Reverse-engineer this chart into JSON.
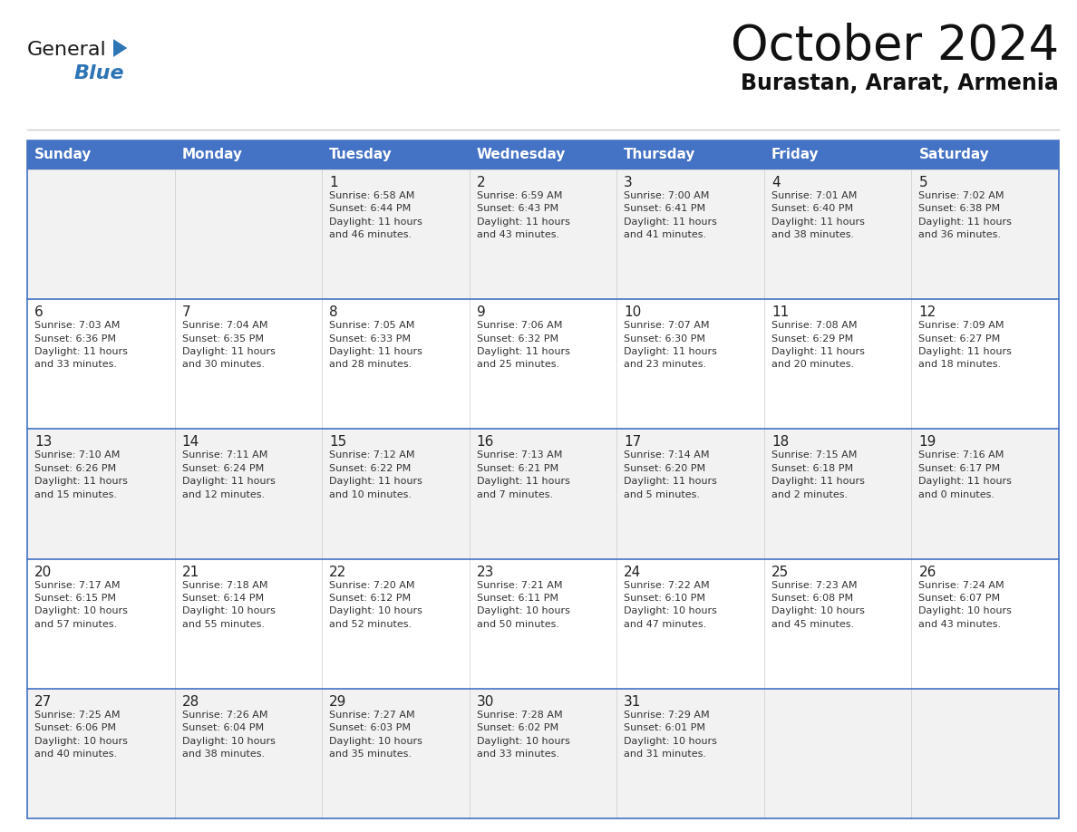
{
  "title": "October 2024",
  "subtitle": "Burastan, Ararat, Armenia",
  "days_of_week": [
    "Sunday",
    "Monday",
    "Tuesday",
    "Wednesday",
    "Thursday",
    "Friday",
    "Saturday"
  ],
  "header_bg": "#4472C4",
  "header_text": "#FFFFFF",
  "row_bg_light": "#F2F2F2",
  "row_bg_white": "#FFFFFF",
  "cell_text_color": "#333333",
  "day_num_color": "#222222",
  "border_color": "#4472C4",
  "row_divider_color": "#4472C4",
  "logo_general_color": "#1a1a1a",
  "logo_blue_color": "#2E75B6",
  "calendar": [
    [
      {
        "day": null,
        "info": null
      },
      {
        "day": null,
        "info": null
      },
      {
        "day": "1",
        "info": "Sunrise: 6:58 AM\nSunset: 6:44 PM\nDaylight: 11 hours\nand 46 minutes."
      },
      {
        "day": "2",
        "info": "Sunrise: 6:59 AM\nSunset: 6:43 PM\nDaylight: 11 hours\nand 43 minutes."
      },
      {
        "day": "3",
        "info": "Sunrise: 7:00 AM\nSunset: 6:41 PM\nDaylight: 11 hours\nand 41 minutes."
      },
      {
        "day": "4",
        "info": "Sunrise: 7:01 AM\nSunset: 6:40 PM\nDaylight: 11 hours\nand 38 minutes."
      },
      {
        "day": "5",
        "info": "Sunrise: 7:02 AM\nSunset: 6:38 PM\nDaylight: 11 hours\nand 36 minutes."
      }
    ],
    [
      {
        "day": "6",
        "info": "Sunrise: 7:03 AM\nSunset: 6:36 PM\nDaylight: 11 hours\nand 33 minutes."
      },
      {
        "day": "7",
        "info": "Sunrise: 7:04 AM\nSunset: 6:35 PM\nDaylight: 11 hours\nand 30 minutes."
      },
      {
        "day": "8",
        "info": "Sunrise: 7:05 AM\nSunset: 6:33 PM\nDaylight: 11 hours\nand 28 minutes."
      },
      {
        "day": "9",
        "info": "Sunrise: 7:06 AM\nSunset: 6:32 PM\nDaylight: 11 hours\nand 25 minutes."
      },
      {
        "day": "10",
        "info": "Sunrise: 7:07 AM\nSunset: 6:30 PM\nDaylight: 11 hours\nand 23 minutes."
      },
      {
        "day": "11",
        "info": "Sunrise: 7:08 AM\nSunset: 6:29 PM\nDaylight: 11 hours\nand 20 minutes."
      },
      {
        "day": "12",
        "info": "Sunrise: 7:09 AM\nSunset: 6:27 PM\nDaylight: 11 hours\nand 18 minutes."
      }
    ],
    [
      {
        "day": "13",
        "info": "Sunrise: 7:10 AM\nSunset: 6:26 PM\nDaylight: 11 hours\nand 15 minutes."
      },
      {
        "day": "14",
        "info": "Sunrise: 7:11 AM\nSunset: 6:24 PM\nDaylight: 11 hours\nand 12 minutes."
      },
      {
        "day": "15",
        "info": "Sunrise: 7:12 AM\nSunset: 6:22 PM\nDaylight: 11 hours\nand 10 minutes."
      },
      {
        "day": "16",
        "info": "Sunrise: 7:13 AM\nSunset: 6:21 PM\nDaylight: 11 hours\nand 7 minutes."
      },
      {
        "day": "17",
        "info": "Sunrise: 7:14 AM\nSunset: 6:20 PM\nDaylight: 11 hours\nand 5 minutes."
      },
      {
        "day": "18",
        "info": "Sunrise: 7:15 AM\nSunset: 6:18 PM\nDaylight: 11 hours\nand 2 minutes."
      },
      {
        "day": "19",
        "info": "Sunrise: 7:16 AM\nSunset: 6:17 PM\nDaylight: 11 hours\nand 0 minutes."
      }
    ],
    [
      {
        "day": "20",
        "info": "Sunrise: 7:17 AM\nSunset: 6:15 PM\nDaylight: 10 hours\nand 57 minutes."
      },
      {
        "day": "21",
        "info": "Sunrise: 7:18 AM\nSunset: 6:14 PM\nDaylight: 10 hours\nand 55 minutes."
      },
      {
        "day": "22",
        "info": "Sunrise: 7:20 AM\nSunset: 6:12 PM\nDaylight: 10 hours\nand 52 minutes."
      },
      {
        "day": "23",
        "info": "Sunrise: 7:21 AM\nSunset: 6:11 PM\nDaylight: 10 hours\nand 50 minutes."
      },
      {
        "day": "24",
        "info": "Sunrise: 7:22 AM\nSunset: 6:10 PM\nDaylight: 10 hours\nand 47 minutes."
      },
      {
        "day": "25",
        "info": "Sunrise: 7:23 AM\nSunset: 6:08 PM\nDaylight: 10 hours\nand 45 minutes."
      },
      {
        "day": "26",
        "info": "Sunrise: 7:24 AM\nSunset: 6:07 PM\nDaylight: 10 hours\nand 43 minutes."
      }
    ],
    [
      {
        "day": "27",
        "info": "Sunrise: 7:25 AM\nSunset: 6:06 PM\nDaylight: 10 hours\nand 40 minutes."
      },
      {
        "day": "28",
        "info": "Sunrise: 7:26 AM\nSunset: 6:04 PM\nDaylight: 10 hours\nand 38 minutes."
      },
      {
        "day": "29",
        "info": "Sunrise: 7:27 AM\nSunset: 6:03 PM\nDaylight: 10 hours\nand 35 minutes."
      },
      {
        "day": "30",
        "info": "Sunrise: 7:28 AM\nSunset: 6:02 PM\nDaylight: 10 hours\nand 33 minutes."
      },
      {
        "day": "31",
        "info": "Sunrise: 7:29 AM\nSunset: 6:01 PM\nDaylight: 10 hours\nand 31 minutes."
      },
      {
        "day": null,
        "info": null
      },
      {
        "day": null,
        "info": null
      }
    ]
  ]
}
